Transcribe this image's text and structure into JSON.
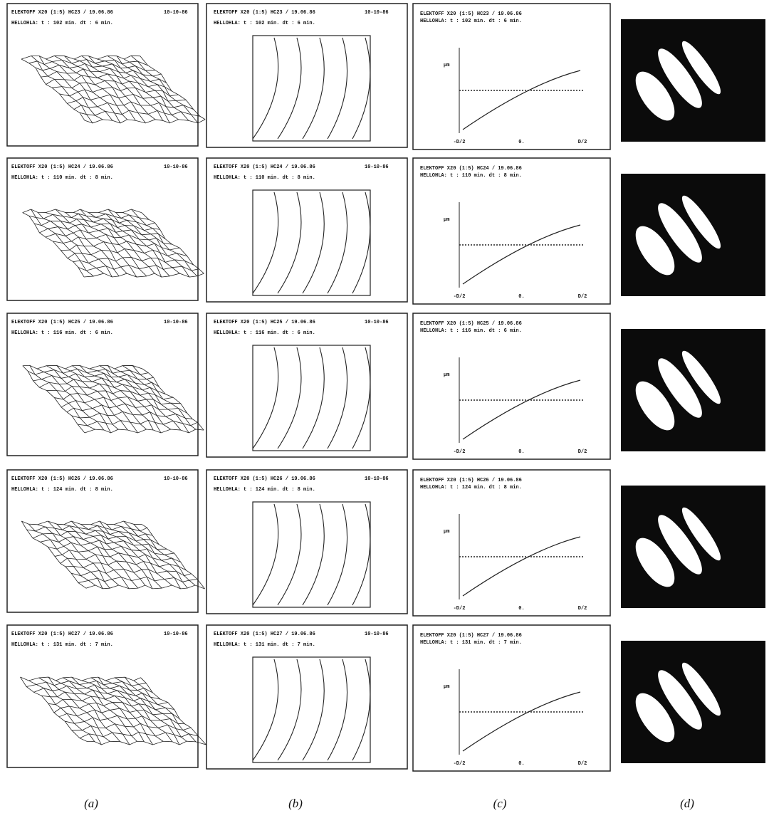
{
  "figure": {
    "panel_labels": [
      "(a)",
      "(b)",
      "(c)",
      "(d)"
    ],
    "rows": [
      {
        "header": "ELEKTOFF X20 (1:5) HC23 / 19.06.86",
        "sub": "HELLOHLA: t : 102 min. dt : 6 min.",
        "date": "10-10-86"
      },
      {
        "header": "ELEKTOFF X20 (1:5) HC24 / 19.06.86",
        "sub": "HELLOHLA: t : 110 min. dt : 8 min.",
        "date": "10-10-86"
      },
      {
        "header": "ELEKTOFF X20 (1:5) HC25 / 19.06.86",
        "sub": "HELLOHLA: t : 116 min. dt : 6 min.",
        "date": "10-10-86"
      },
      {
        "header": "ELEKTOFF X20 (1:5) HC26 / 19.06.86",
        "sub": "HELLOHLA: t : 124 min. dt : 8 min.",
        "date": "10-10-86"
      },
      {
        "header": "ELEKTOFF X20 (1:5) HC27 / 19.06.86",
        "sub": "HELLOHLA: t : 131 min. dt : 7 min.",
        "date": "10-10-86"
      }
    ],
    "c_axis": {
      "y_unit": "µm",
      "x_ticks": [
        "-D/2",
        "0.",
        "D/2"
      ]
    }
  }
}
